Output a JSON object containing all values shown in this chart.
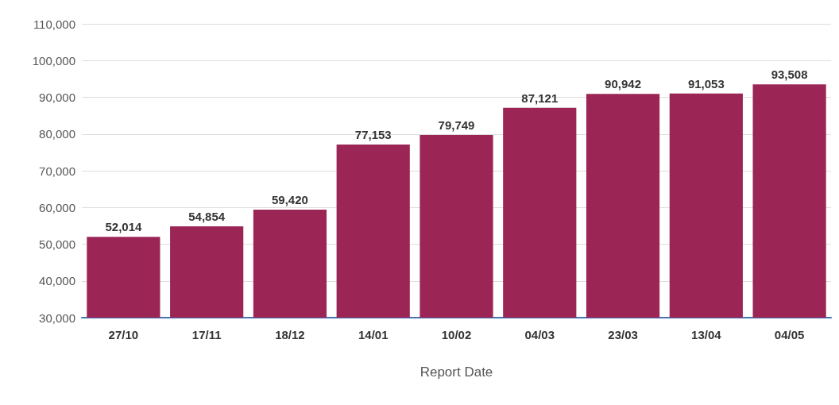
{
  "chart_data": {
    "type": "bar",
    "xlabel": "Report Date",
    "categories": [
      "27/10",
      "17/11",
      "18/12",
      "14/01",
      "10/02",
      "04/03",
      "23/03",
      "13/04",
      "04/05"
    ],
    "values": [
      52014,
      54854,
      59420,
      77153,
      79749,
      87121,
      90942,
      91053,
      93508
    ],
    "value_labels": [
      "52,014",
      "54,854",
      "59,420",
      "77,153",
      "79,749",
      "87,121",
      "90,942",
      "91,053",
      "93,508"
    ],
    "color": "#9b2655",
    "ylim": [
      30000,
      110000
    ],
    "yticks": [
      {
        "value": 30000,
        "label": "30,000"
      },
      {
        "value": 40000,
        "label": "40,000"
      },
      {
        "value": 50000,
        "label": "50,000"
      },
      {
        "value": 60000,
        "label": "60,000"
      },
      {
        "value": 70000,
        "label": "70,000"
      },
      {
        "value": 80000,
        "label": "80,000"
      },
      {
        "value": 90000,
        "label": "90,000"
      },
      {
        "value": 100000,
        "label": "100,000"
      },
      {
        "value": 110000,
        "label": "110,000"
      }
    ],
    "grid": "y"
  }
}
